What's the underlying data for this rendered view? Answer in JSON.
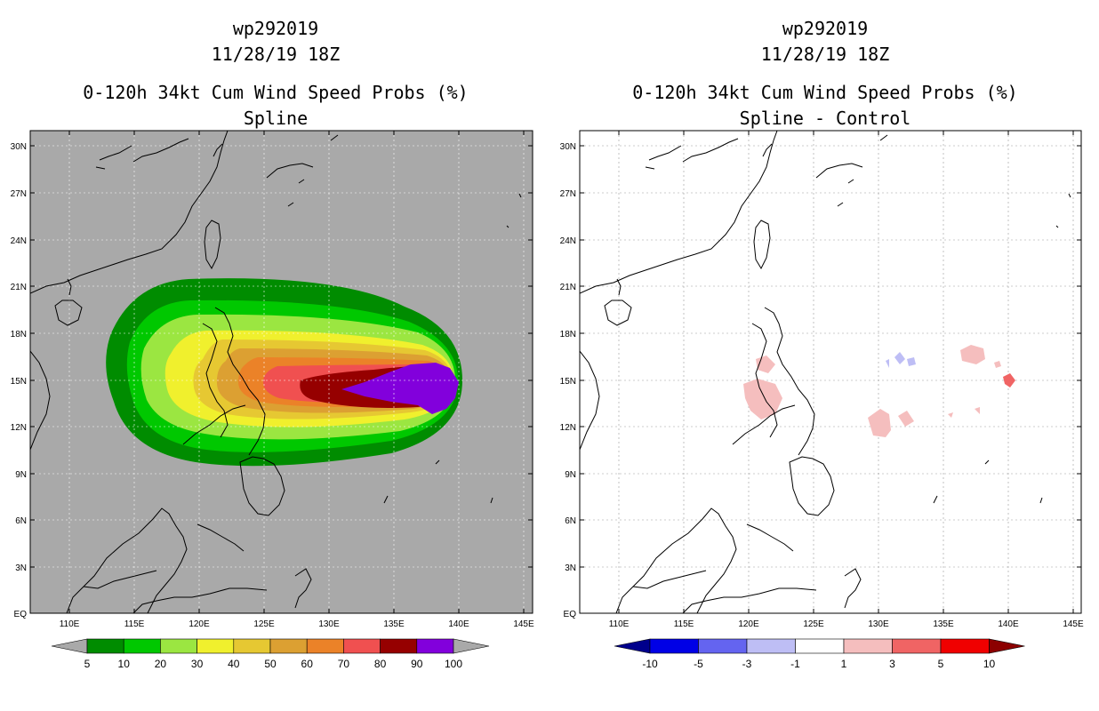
{
  "panels": [
    {
      "storm_id": "wp292019",
      "datetime": "11/28/19 18Z",
      "product": "0-120h 34kt Cum Wind Speed Probs (%)",
      "subtitle": "Spline",
      "background_color": "#a9a9a9"
    },
    {
      "storm_id": "wp292019",
      "datetime": "11/28/19 18Z",
      "product": "0-120h 34kt Cum Wind Speed Probs (%)",
      "subtitle": "Spline - Control",
      "background_color": "#ffffff"
    }
  ],
  "axes": {
    "lat_labels": [
      "EQ",
      "3N",
      "6N",
      "9N",
      "12N",
      "15N",
      "18N",
      "21N",
      "24N",
      "27N",
      "30N"
    ],
    "lon_labels": [
      "110E",
      "115E",
      "120E",
      "125E",
      "130E",
      "135E",
      "140E",
      "145E"
    ]
  },
  "colorbar_left": {
    "levels": [
      "5",
      "10",
      "20",
      "30",
      "40",
      "50",
      "60",
      "70",
      "80",
      "90",
      "100"
    ],
    "colors": [
      "#008c00",
      "#00c800",
      "#9be641",
      "#f0f02d",
      "#e6c832",
      "#dca032",
      "#eb8228",
      "#f05050",
      "#960000",
      "#8200dc"
    ],
    "under_color": "#a9a9a9",
    "over_color": "#a9a9a9"
  },
  "colorbar_right": {
    "levels": [
      "-10",
      "-5",
      "-3",
      "-1",
      "1",
      "3",
      "5",
      "10"
    ],
    "colors": [
      "#0000e6",
      "#6464f0",
      "#bebef5",
      "#ffffff",
      "#f5bebe",
      "#f06464",
      "#f00000"
    ],
    "under_color": "#00008c",
    "over_color": "#8c0000"
  }
}
